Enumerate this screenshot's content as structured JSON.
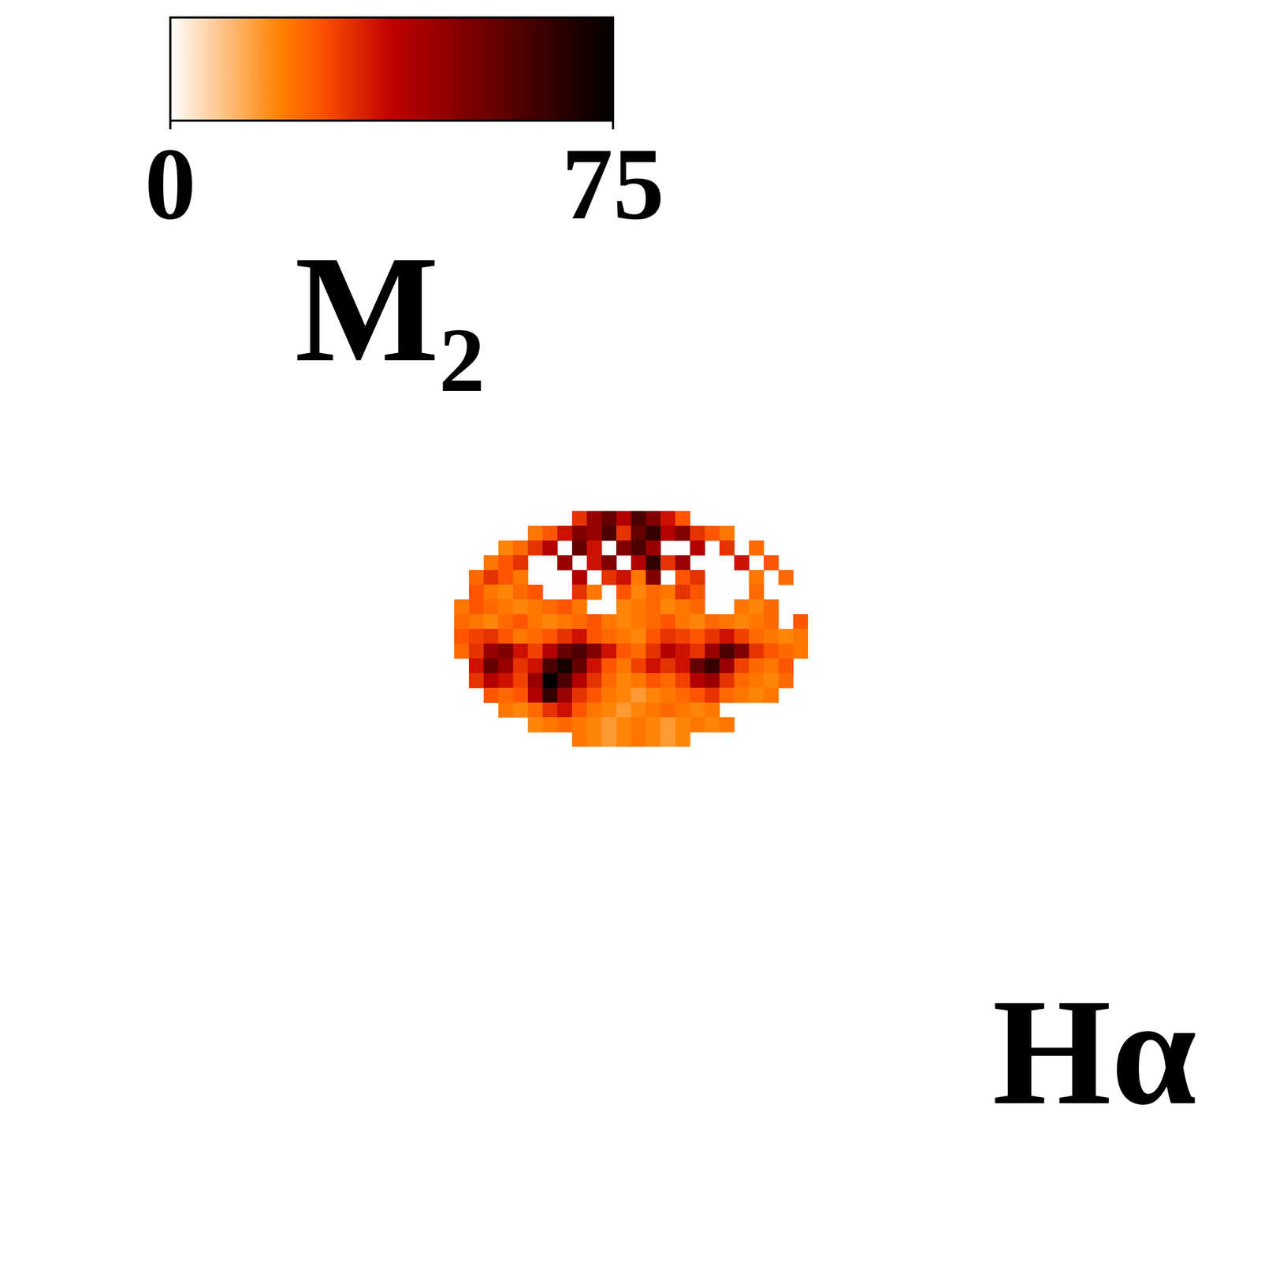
{
  "chart_data": {
    "type": "heatmap",
    "tick_labels": false,
    "cells": [
      [
        null,
        null,
        null,
        null,
        null,
        null,
        null,
        null,
        30,
        45,
        55,
        40,
        60,
        50,
        35,
        25,
        null,
        null,
        null,
        null,
        null,
        null,
        null,
        null
      ],
      [
        null,
        null,
        null,
        null,
        null,
        20,
        25,
        35,
        50,
        45,
        60,
        30,
        55,
        65,
        40,
        50,
        30,
        25,
        20,
        null,
        null,
        null,
        null,
        null
      ],
      [
        null,
        null,
        null,
        18,
        22,
        30,
        40,
        null,
        55,
        35,
        null,
        50,
        60,
        45,
        null,
        null,
        40,
        null,
        30,
        null,
        22,
        null,
        null,
        null
      ],
      [
        null,
        null,
        20,
        25,
        30,
        null,
        null,
        45,
        null,
        35,
        50,
        null,
        40,
        65,
        30,
        45,
        null,
        null,
        null,
        35,
        null,
        25,
        null,
        null
      ],
      [
        null,
        22,
        30,
        25,
        20,
        null,
        null,
        null,
        40,
        null,
        30,
        35,
        20,
        50,
        null,
        25,
        30,
        null,
        null,
        null,
        20,
        null,
        22,
        null
      ],
      [
        null,
        25,
        20,
        18,
        22,
        25,
        null,
        null,
        30,
        20,
        null,
        25,
        18,
        22,
        20,
        30,
        25,
        null,
        null,
        null,
        22,
        null,
        null,
        null
      ],
      [
        20,
        25,
        22,
        20,
        18,
        20,
        22,
        25,
        20,
        null,
        null,
        18,
        20,
        22,
        18,
        20,
        22,
        null,
        null,
        20,
        18,
        22,
        null,
        null
      ],
      [
        22,
        20,
        18,
        22,
        25,
        20,
        18,
        20,
        22,
        25,
        20,
        18,
        20,
        22,
        25,
        20,
        18,
        22,
        20,
        18,
        20,
        22,
        null,
        25
      ],
      [
        25,
        28,
        30,
        25,
        20,
        22,
        25,
        30,
        35,
        25,
        22,
        20,
        18,
        25,
        30,
        28,
        25,
        30,
        35,
        28,
        22,
        20,
        18,
        20
      ],
      [
        22,
        30,
        45,
        50,
        35,
        28,
        40,
        55,
        60,
        50,
        35,
        25,
        22,
        30,
        40,
        35,
        30,
        45,
        60,
        50,
        30,
        25,
        22,
        20
      ],
      [
        null,
        35,
        55,
        45,
        30,
        35,
        60,
        70,
        55,
        35,
        25,
        20,
        28,
        35,
        30,
        35,
        55,
        65,
        45,
        28,
        22,
        20,
        25,
        null
      ],
      [
        null,
        30,
        40,
        35,
        28,
        45,
        75,
        60,
        40,
        30,
        22,
        18,
        20,
        25,
        22,
        28,
        40,
        45,
        30,
        22,
        20,
        18,
        22,
        null
      ],
      [
        null,
        null,
        25,
        22,
        25,
        40,
        65,
        45,
        30,
        25,
        20,
        18,
        15,
        18,
        20,
        22,
        25,
        30,
        22,
        20,
        18,
        20,
        null,
        null
      ],
      [
        null,
        null,
        null,
        20,
        18,
        22,
        30,
        35,
        25,
        20,
        18,
        15,
        18,
        20,
        22,
        20,
        18,
        20,
        null,
        null,
        null,
        null,
        null,
        null
      ],
      [
        null,
        null,
        null,
        null,
        null,
        18,
        20,
        22,
        20,
        18,
        15,
        18,
        20,
        18,
        15,
        18,
        20,
        18,
        20,
        null,
        null,
        null,
        null,
        null
      ],
      [
        null,
        null,
        null,
        null,
        null,
        null,
        null,
        null,
        20,
        18,
        15,
        18,
        20,
        18,
        15,
        18,
        null,
        null,
        null,
        null,
        null,
        null,
        null,
        null
      ]
    ],
    "colorbar": {
      "range": [
        0,
        75
      ],
      "ticks": [
        0,
        75
      ],
      "label": "M₂"
    },
    "annotations": [
      "Hα"
    ]
  }
}
